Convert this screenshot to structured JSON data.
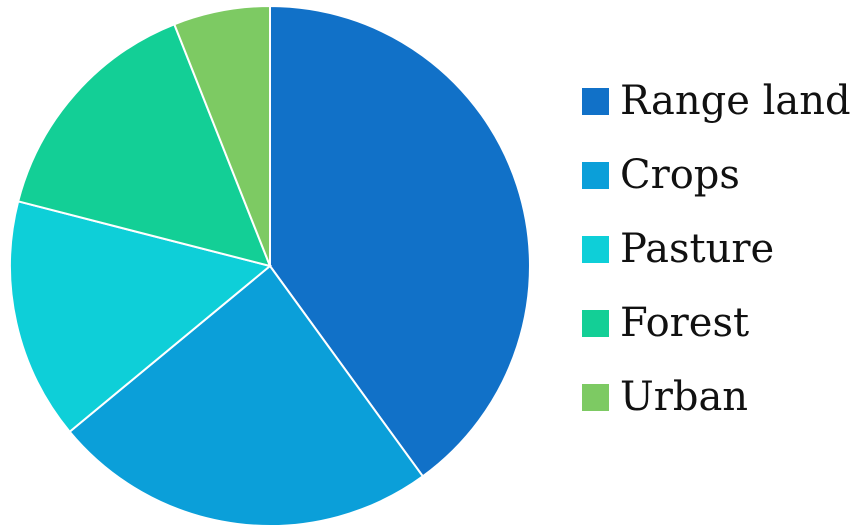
{
  "chart_data": {
    "type": "pie",
    "title": "",
    "categories": [
      "Range land",
      "Crops",
      "Pasture",
      "Forest",
      "Urban"
    ],
    "values": [
      40,
      24,
      15,
      15,
      6
    ],
    "colors": [
      "#1171c8",
      "#0b9fd9",
      "#0ecfd8",
      "#13cf96",
      "#7dca63"
    ],
    "start": "12 o'clock",
    "direction": "clockwise",
    "legend": {
      "position": "right",
      "items": [
        {
          "label": "Range land",
          "color": "#1171c8"
        },
        {
          "label": "Crops",
          "color": "#0b9fd9"
        },
        {
          "label": "Pasture",
          "color": "#0ecfd8"
        },
        {
          "label": "Forest",
          "color": "#13cf96"
        },
        {
          "label": "Urban",
          "color": "#7dca63"
        }
      ]
    }
  }
}
